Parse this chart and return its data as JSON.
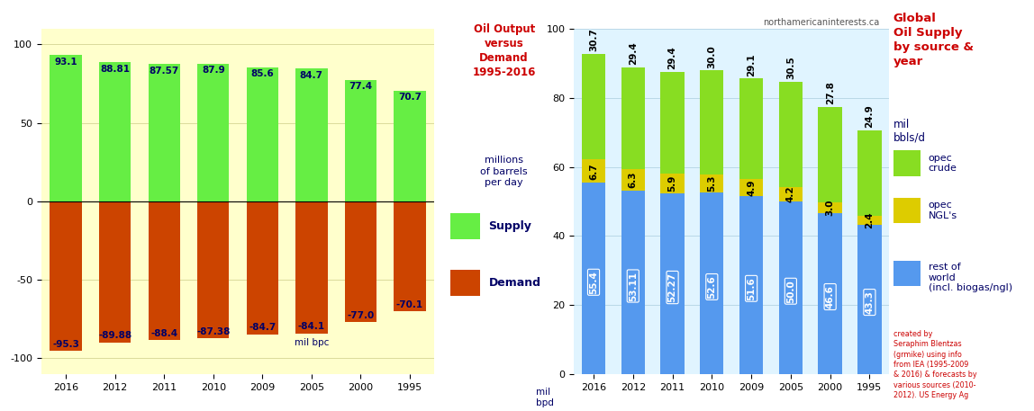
{
  "left_years": [
    "2016",
    "2012",
    "2011",
    "2010",
    "2009",
    "2005",
    "2000",
    "1995"
  ],
  "supply_values": [
    93.1,
    88.81,
    87.57,
    87.9,
    85.6,
    84.7,
    77.4,
    70.7
  ],
  "demand_values": [
    -95.3,
    -89.88,
    -88.4,
    -87.38,
    -84.7,
    -84.1,
    -77.0,
    -70.1
  ],
  "supply_color": "#66ee44",
  "demand_color": "#cc4400",
  "left_bg": "#ffffcc",
  "left_ylim": [
    -110,
    110
  ],
  "left_yticks": [
    -100,
    -50,
    0,
    50,
    100
  ],
  "left_xlabel_mil": "mil bpc",
  "right_years": [
    "2016",
    "2012",
    "2011",
    "2010",
    "2009",
    "2005",
    "2000",
    "1995"
  ],
  "row_blue": [
    55.4,
    53.11,
    52.27,
    52.6,
    51.6,
    50.0,
    46.6,
    43.3
  ],
  "row_yellow": [
    6.7,
    6.3,
    5.9,
    5.3,
    4.9,
    4.2,
    3.0,
    2.4
  ],
  "row_green": [
    30.7,
    29.4,
    29.4,
    30.0,
    29.1,
    30.5,
    27.8,
    24.9
  ],
  "blue_color": "#5599ee",
  "yellow_color": "#ddcc00",
  "green_color": "#88dd22",
  "right_bg": "#e0f4ff",
  "right_ylim": [
    0,
    100
  ],
  "right_yticks": [
    0,
    20,
    40,
    60,
    80,
    100
  ],
  "watermark": "northamericaninterests.ca",
  "credit_text": "created by\nSeraphim Blentzas\n(grmike) using info\nfrom IEA (1995-2009\n& 2016) & forecasts by\nvarious sources (2010-\n2012). US Energy Ag",
  "title_color": "#cc0000",
  "label_color": "#000066",
  "mid_title": "Oil Output\nversus\nDemand\n1995-2016",
  "mid_subtitle": "millions\nof barrels\nper day",
  "right_title": "Global\nOil Supply\nby source &\nyear",
  "right_unit": "mil\nbbls/d",
  "legend_opec_crude": "opec\ncrude",
  "legend_opec_ngl": "opec\nNGL's",
  "legend_row": "rest of\nworld\n(incl. biogas/ngl)"
}
